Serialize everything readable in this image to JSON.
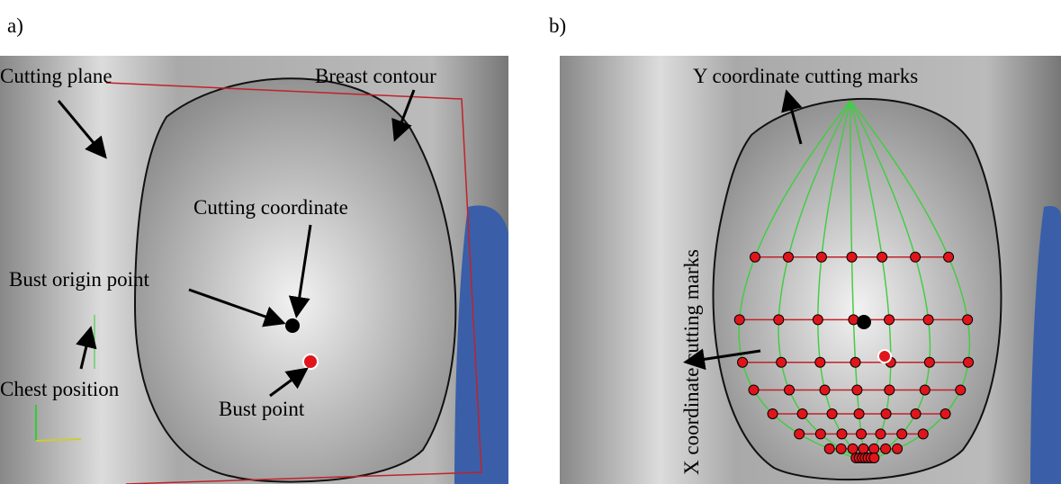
{
  "panels": [
    {
      "label": "a)",
      "annotations": [
        "Cutting plane",
        "Breast contour",
        "Cutting coordinate",
        "Bust origin point",
        "Chest position",
        "Bust point"
      ]
    },
    {
      "label": "b)",
      "annotations": [
        "Y coordinate cutting marks",
        "X coordinate cutting marks"
      ]
    }
  ]
}
